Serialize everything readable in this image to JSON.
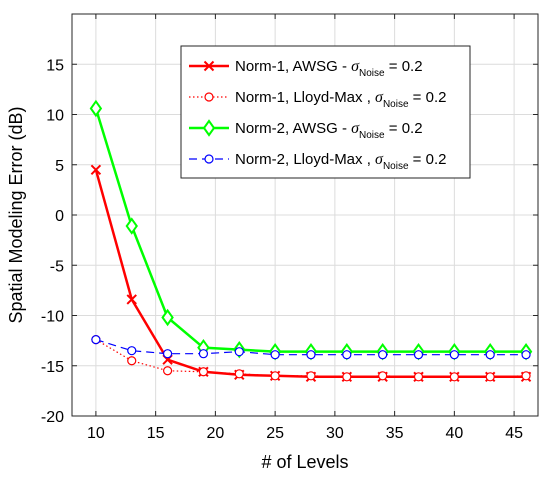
{
  "chart_data": {
    "type": "line",
    "title": "",
    "xlabel": "# of Levels",
    "ylabel": "Spatial Modeling Error (dB)",
    "xlim": [
      8,
      47
    ],
    "ylim": [
      -20,
      20
    ],
    "xticks": [
      10,
      15,
      20,
      25,
      30,
      35,
      40,
      45
    ],
    "yticks": [
      -20,
      -15,
      -10,
      -5,
      0,
      5,
      10,
      15
    ],
    "grid": true,
    "legend_position": "top-right",
    "x": [
      10,
      13,
      16,
      19,
      22,
      25,
      28,
      31,
      34,
      37,
      40,
      43,
      46
    ],
    "series": [
      {
        "name": "Norm-1, AWSG - ",
        "name_tail": " = 0.2",
        "color": "#ff0000",
        "line": "solid",
        "marker": "x",
        "values": [
          4.5,
          -8.4,
          -14.4,
          -15.6,
          -15.9,
          -16.0,
          -16.1,
          -16.1,
          -16.1,
          -16.1,
          -16.1,
          -16.1,
          -16.1
        ]
      },
      {
        "name": "Norm-1, Lloyd-Max , ",
        "name_tail": " = 0.2",
        "color": "#ff0000",
        "line": "dotted",
        "marker": "circle",
        "values": [
          -12.4,
          -14.5,
          -15.5,
          -15.6,
          -15.8,
          -16.0,
          -16.0,
          -16.1,
          -16.0,
          -16.1,
          -16.1,
          -16.1,
          -16.0
        ]
      },
      {
        "name": "Norm-2, AWSG - ",
        "name_tail": " = 0.2",
        "color": "#00ff00",
        "line": "solid",
        "marker": "diamond",
        "values": [
          10.6,
          -1.1,
          -10.2,
          -13.2,
          -13.4,
          -13.6,
          -13.6,
          -13.6,
          -13.6,
          -13.6,
          -13.6,
          -13.6,
          -13.6
        ]
      },
      {
        "name": "Norm-2, Lloyd-Max , ",
        "name_tail": " = 0.2",
        "color": "#0000ff",
        "line": "dashed",
        "marker": "circle",
        "values": [
          -12.4,
          -13.5,
          -13.8,
          -13.8,
          -13.6,
          -13.9,
          -13.9,
          -13.9,
          -13.9,
          -13.9,
          -13.9,
          -13.9,
          -13.9
        ]
      }
    ],
    "legend_symbol": "σ",
    "legend_subscript": "Noise"
  }
}
